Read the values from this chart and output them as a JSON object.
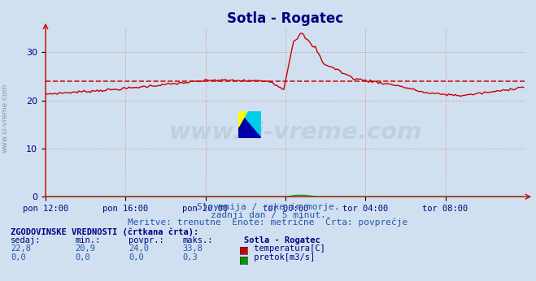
{
  "title": "Sotla - Rogatec",
  "title_color": "#000080",
  "bg_color": "#d0e0f0",
  "plot_bg_color": "#d0e0f0",
  "grid_color": "#e08080",
  "x_labels": [
    "pon 12:00",
    "pon 16:00",
    "pon 20:00",
    "tor 00:00",
    "tor 04:00",
    "tor 08:00"
  ],
  "x_ticks": [
    0,
    48,
    96,
    144,
    192,
    240
  ],
  "x_max": 288,
  "y_lim": [
    0,
    35
  ],
  "y_ticks": [
    0,
    10,
    20,
    30
  ],
  "temp_color": "#cc0000",
  "flow_color": "#009900",
  "avg_temp": 24.0,
  "subtitle1": "Slovenija / reke in morje.",
  "subtitle2": "zadnji dan / 5 minut.",
  "subtitle3": "Meritve: trenutne  Enote: metrične  Črta: povprečje",
  "subtitle_color": "#2255aa",
  "watermark": "www.si-vreme.com",
  "ylabel_text": "www.si-vreme.com",
  "ylabel_color": "#8899aa",
  "table_header": "ZGODOVINSKE VREDNOSTI (črtkana črta):",
  "table_cols": [
    "sedaj:",
    "min.:",
    "povpr.:",
    "maks.:",
    "Sotla - Rogatec"
  ],
  "table_temp": [
    "22,8",
    "20,9",
    "24,0",
    "33,8"
  ],
  "table_flow": [
    "0,0",
    "0,0",
    "0,0",
    "0,3"
  ],
  "table_color": "#000080",
  "n_points": 288
}
